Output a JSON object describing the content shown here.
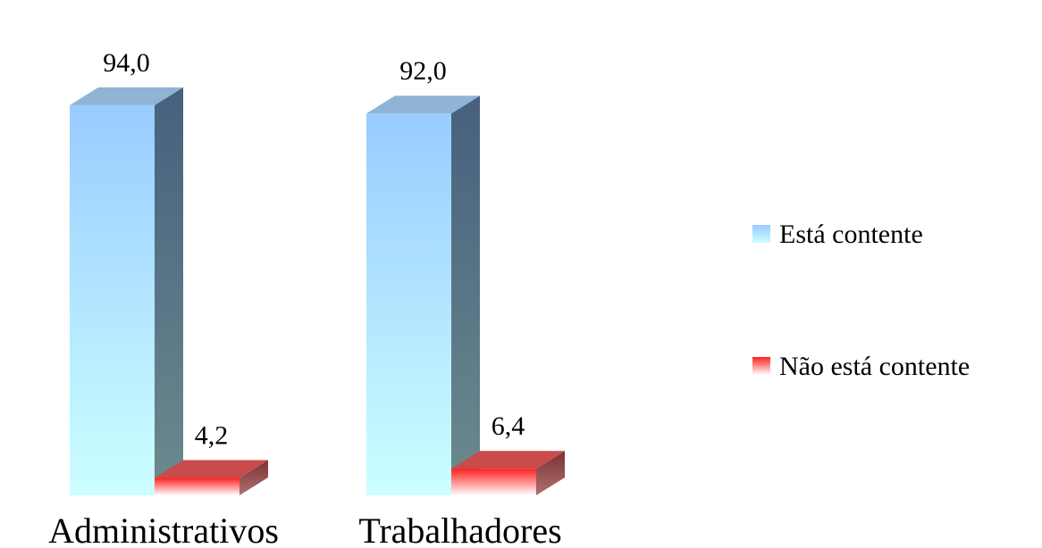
{
  "chart_data": {
    "type": "bar",
    "style": "3d-column",
    "categories": [
      "Administrativos",
      "Trabalhadores"
    ],
    "series": [
      {
        "name": "Está contente",
        "values": [
          94.0,
          92.0
        ],
        "value_labels": [
          "94,0",
          "92,0"
        ],
        "colors": {
          "front_top": "#99CCFF",
          "front_bottom": "#CCFFFF",
          "top": "#8FB4D6",
          "side_top": "#47607E",
          "side_bottom": "#6C8A8E"
        }
      },
      {
        "name": "Não está contente",
        "values": [
          4.2,
          6.4
        ],
        "value_labels": [
          "4,2",
          "6,4"
        ],
        "colors": {
          "front_top": "#FF2020",
          "front_bottom": "#FFFFFF",
          "top": "#C94B4B",
          "side_top": "#7A3232",
          "side_bottom": "#B07070"
        }
      }
    ],
    "ylim": [
      0,
      100
    ],
    "grid": false,
    "legend_position": "right",
    "title": "",
    "xlabel": "",
    "ylabel": ""
  }
}
